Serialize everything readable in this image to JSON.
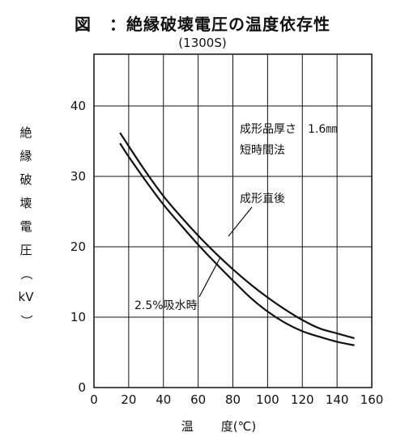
{
  "header": {
    "figure_label": "図",
    "title": "：絶縁破壊電圧の温度依存性",
    "subtitle": "(1300S)"
  },
  "axis": {
    "ylabel_chars": [
      "絶",
      "縁",
      "破",
      "壊",
      "電",
      "圧",
      "（",
      "kV",
      "）"
    ],
    "xlabel_part1": "温",
    "xlabel_part2": "度(℃)"
  },
  "annotations": {
    "thickness": "成形品厚さ　1.6㎜",
    "method": "短時間法",
    "series_dry": "成形直後",
    "series_wet": "2.5%吸水時"
  },
  "colors": {
    "line": "#111111",
    "grid": "#111111",
    "background": "#ffffff"
  },
  "chart_data": {
    "type": "line",
    "title": "：絶縁破壊電圧の温度依存性",
    "subtitle": "(1300S)",
    "xlabel": "温度(℃)",
    "ylabel": "絶縁破壊電圧（kV）",
    "xlim": [
      0,
      160
    ],
    "ylim": [
      0,
      40
    ],
    "xticks": [
      0,
      20,
      40,
      60,
      80,
      100,
      120,
      140,
      160
    ],
    "yticks": [
      0,
      10,
      20,
      30,
      40
    ],
    "grid": true,
    "series": [
      {
        "name": "成形直後",
        "x": [
          15,
          20,
          30,
          40,
          50,
          60,
          70,
          80,
          90,
          100,
          110,
          120,
          130,
          140,
          150
        ],
        "y": [
          36.2,
          34.3,
          30.6,
          27.2,
          24.3,
          21.6,
          19.1,
          16.8,
          14.7,
          12.8,
          11.1,
          9.6,
          8.4,
          7.7,
          7.0
        ]
      },
      {
        "name": "2.5%吸水時",
        "x": [
          15,
          20,
          30,
          40,
          50,
          60,
          70,
          80,
          90,
          100,
          110,
          120,
          130,
          140,
          150
        ],
        "y": [
          34.7,
          32.8,
          29.3,
          26.0,
          23.1,
          20.3,
          17.7,
          15.2,
          12.8,
          10.8,
          9.2,
          8.0,
          7.2,
          6.5,
          6.0
        ]
      }
    ]
  }
}
